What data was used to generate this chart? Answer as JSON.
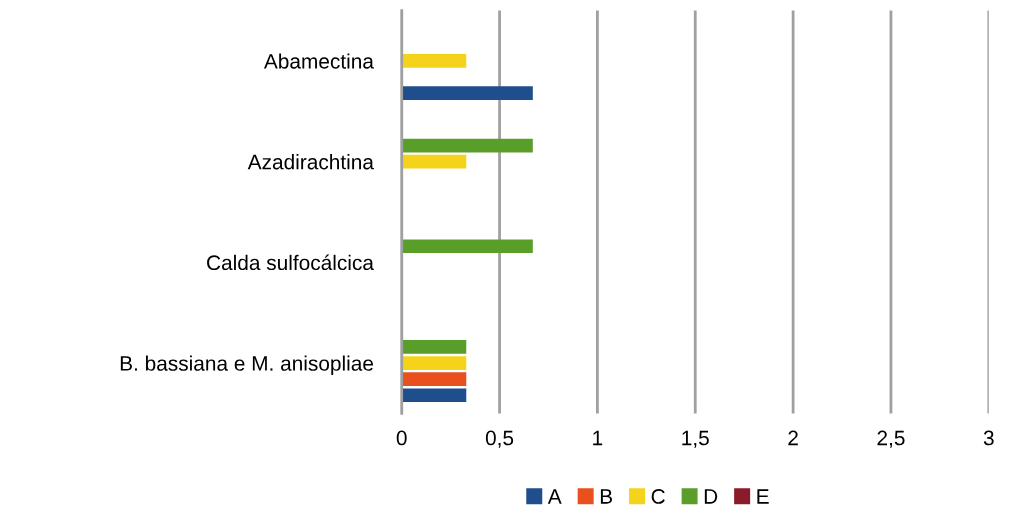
{
  "chart_data": {
    "type": "bar",
    "orientation": "horizontal",
    "categories": [
      "Abamectina",
      "Azadirachtina",
      "Calda sulfocálcica",
      "B. bassiana e M. anisopliae"
    ],
    "series": [
      {
        "name": "A",
        "color": "#1f4e8c",
        "values": [
          0.67,
          0,
          0,
          0.33
        ]
      },
      {
        "name": "B",
        "color": "#e8501e",
        "values": [
          0,
          0,
          0,
          0.33
        ]
      },
      {
        "name": "C",
        "color": "#f5d31a",
        "values": [
          0.33,
          0.33,
          0,
          0.33
        ]
      },
      {
        "name": "D",
        "color": "#5a9e2a",
        "values": [
          0,
          0.67,
          0.67,
          0.33
        ]
      },
      {
        "name": "E",
        "color": "#8b1a2a",
        "values": [
          0,
          0,
          0,
          0
        ]
      }
    ],
    "xlim": [
      0,
      3
    ],
    "xticks": [
      0,
      {
        "value": 0.5,
        "label": "0,5"
      },
      1,
      {
        "value": 1.5,
        "label": "1,5"
      },
      2,
      {
        "value": 2.5,
        "label": "2,5"
      },
      3
    ],
    "grid": "x",
    "legend": "bottom"
  }
}
